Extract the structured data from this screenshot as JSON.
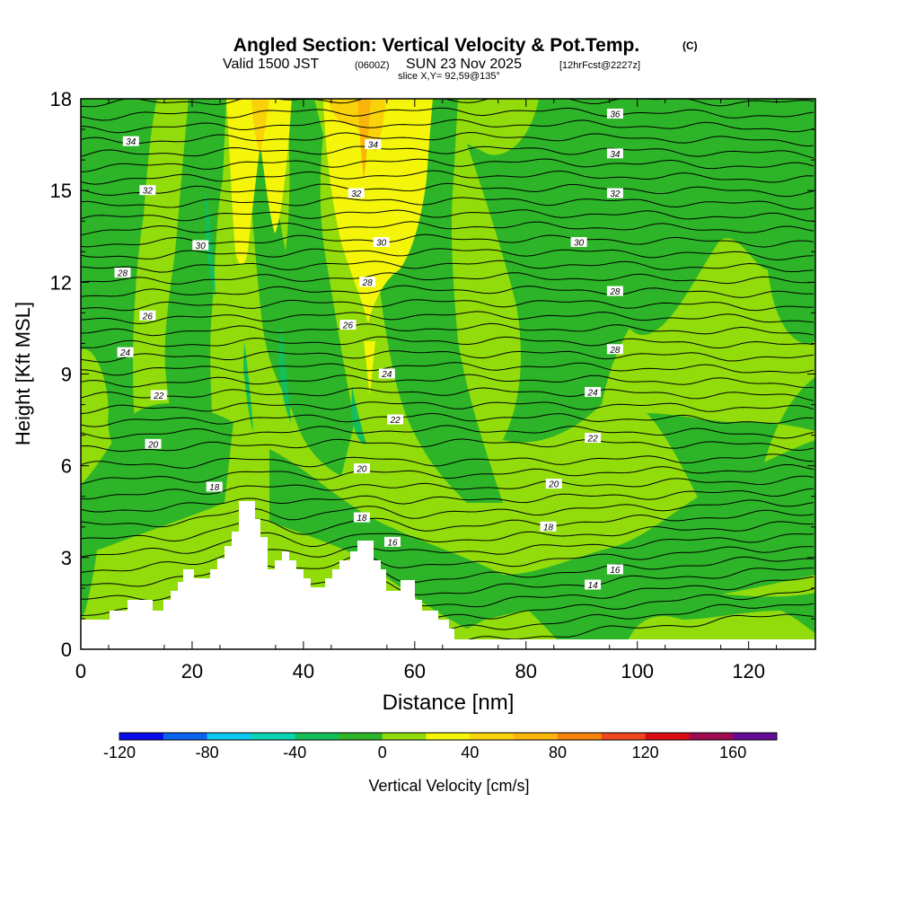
{
  "header": {
    "title": "Angled Section: Vertical Velocity & Pot.Temp.",
    "title_unit": "(C)",
    "valid_prefix": "Valid 1500 JST",
    "valid_utc": "(0600Z)",
    "valid_date": "SUN 23 Nov 2025",
    "forecast": "[12hrFcst@2227z]",
    "slice": "slice X,Y= 92,59@135°"
  },
  "chart_data": {
    "type": "cross-section contour",
    "title": "Angled Section: Vertical Velocity & Pot.Temp.",
    "xlabel": "Distance [nm]",
    "ylabel": "Height [Kft MSL]",
    "xlim": [
      0,
      132
    ],
    "ylim": [
      0,
      18
    ],
    "x_ticks": [
      "0",
      "20",
      "40",
      "60",
      "80",
      "100",
      "120"
    ],
    "y_ticks": [
      "0",
      "3",
      "6",
      "9",
      "12",
      "15",
      "18"
    ],
    "x_tick_values": [
      0,
      20,
      40,
      60,
      80,
      100,
      120
    ],
    "y_tick_values": [
      0,
      3,
      6,
      9,
      12,
      15,
      18
    ],
    "colorbar": {
      "label": "Vertical Velocity [cm/s]",
      "range": [
        -120,
        180
      ],
      "step": 20,
      "tick_labels": [
        "-120",
        "-80",
        "-40",
        "0",
        "40",
        "80",
        "120",
        "160"
      ],
      "tick_values": [
        -120,
        -80,
        -40,
        0,
        40,
        80,
        120,
        160
      ],
      "colors": [
        "#0a0aef",
        "#0a64f0",
        "#0ac8f0",
        "#0ad2b4",
        "#14be5a",
        "#2db428",
        "#91dc0a",
        "#f5f50a",
        "#fad20a",
        "#fab40a",
        "#f5820a",
        "#f0461e",
        "#dc0a14",
        "#a00a50",
        "#640a96"
      ]
    },
    "theta_labels": [
      {
        "text": "34",
        "x": 9,
        "y": 16.6
      },
      {
        "text": "32",
        "x": 12,
        "y": 15.0
      },
      {
        "text": "30",
        "x": 21.5,
        "y": 13.2
      },
      {
        "text": "28",
        "x": 7.5,
        "y": 12.3
      },
      {
        "text": "26",
        "x": 12,
        "y": 10.9
      },
      {
        "text": "24",
        "x": 8,
        "y": 9.7
      },
      {
        "text": "22",
        "x": 14,
        "y": 8.3
      },
      {
        "text": "20",
        "x": 13,
        "y": 6.7
      },
      {
        "text": "18",
        "x": 24,
        "y": 5.3
      },
      {
        "text": "34",
        "x": 52.5,
        "y": 16.5
      },
      {
        "text": "32",
        "x": 49.5,
        "y": 14.9
      },
      {
        "text": "30",
        "x": 54,
        "y": 13.3
      },
      {
        "text": "28",
        "x": 51.5,
        "y": 12.0
      },
      {
        "text": "26",
        "x": 48,
        "y": 10.6
      },
      {
        "text": "24",
        "x": 55,
        "y": 9.0
      },
      {
        "text": "22",
        "x": 56.5,
        "y": 7.5
      },
      {
        "text": "20",
        "x": 50.5,
        "y": 5.9
      },
      {
        "text": "18",
        "x": 50.5,
        "y": 4.3
      },
      {
        "text": "16",
        "x": 56,
        "y": 3.5
      },
      {
        "text": "36",
        "x": 96,
        "y": 17.5
      },
      {
        "text": "34",
        "x": 96,
        "y": 16.2
      },
      {
        "text": "32",
        "x": 96,
        "y": 14.9
      },
      {
        "text": "30",
        "x": 89.5,
        "y": 13.3
      },
      {
        "text": "28",
        "x": 96,
        "y": 11.7
      },
      {
        "text": "28",
        "x": 96,
        "y": 9.8
      },
      {
        "text": "24",
        "x": 92,
        "y": 8.4
      },
      {
        "text": "22",
        "x": 92,
        "y": 6.9
      },
      {
        "text": "20",
        "x": 85,
        "y": 5.4
      },
      {
        "text": "18",
        "x": 84,
        "y": 4.0
      },
      {
        "text": "16",
        "x": 96,
        "y": 2.6
      },
      {
        "text": "14",
        "x": 92,
        "y": 2.1
      }
    ]
  }
}
